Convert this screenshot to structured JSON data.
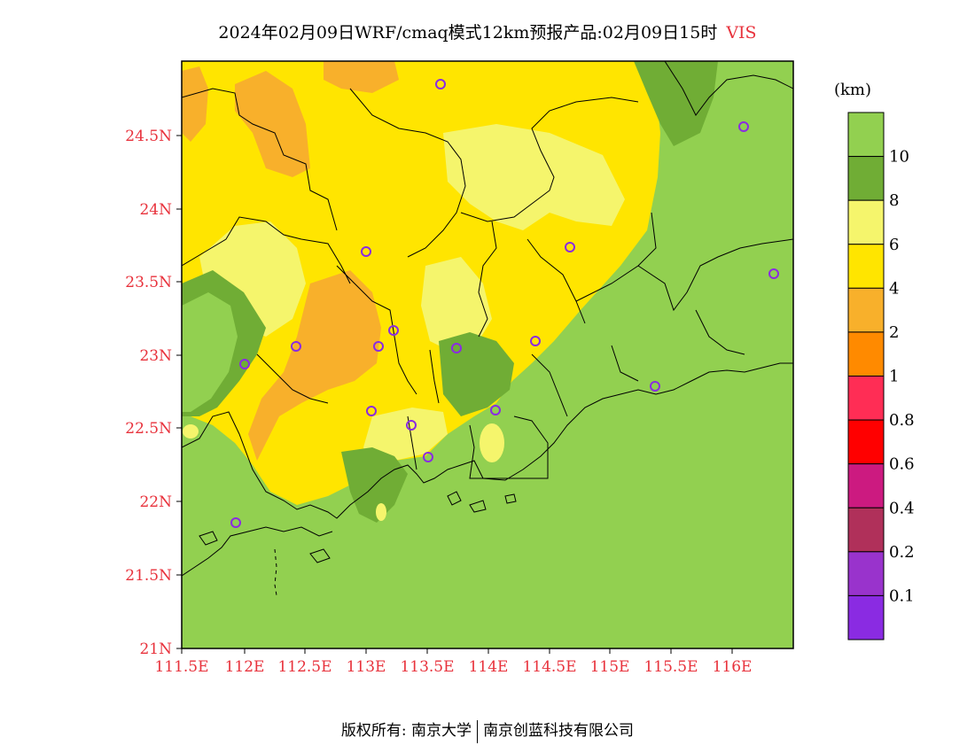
{
  "title": {
    "text": "2024年02月09日WRF/cmaq模式12km预报产品:02月09日15时",
    "variable": "VIS"
  },
  "map": {
    "lat_labels": [
      "24.5N",
      "24N",
      "23.5N",
      "23N",
      "22.5N",
      "22N",
      "21.5N",
      "21N"
    ],
    "lon_labels": [
      "111.5E",
      "112E",
      "112.5E",
      "113E",
      "113.5E",
      "114E",
      "114.5E",
      "115E",
      "115.5E",
      "116E"
    ],
    "fill_colors": {
      "sea": "#92d050",
      "vis_4_6": "#ffe500",
      "vis_6_8": "#f5f56c",
      "vis_8_10": "#70ad35",
      "vis_2_4": "#f8b02b",
      "vis_1_2": "#ff8a00",
      "border": "#000000",
      "station": "#8a2be2"
    }
  },
  "colorbar": {
    "unit": "(km)",
    "labels": [
      "10",
      "8",
      "6",
      "4",
      "2",
      "1",
      "0.8",
      "0.6",
      "0.4",
      "0.2",
      "0.1"
    ],
    "colors": [
      "#92d050",
      "#70ad35",
      "#f5f56c",
      "#ffe500",
      "#f8b02b",
      "#ff8a00",
      "#ff2d55",
      "#ff0000",
      "#cc1a80",
      "#b0305a",
      "#9933cc",
      "#8a2be2"
    ]
  },
  "footer": {
    "left": "版权所有: 南京大学",
    "right": "南京创蓝科技有限公司"
  }
}
